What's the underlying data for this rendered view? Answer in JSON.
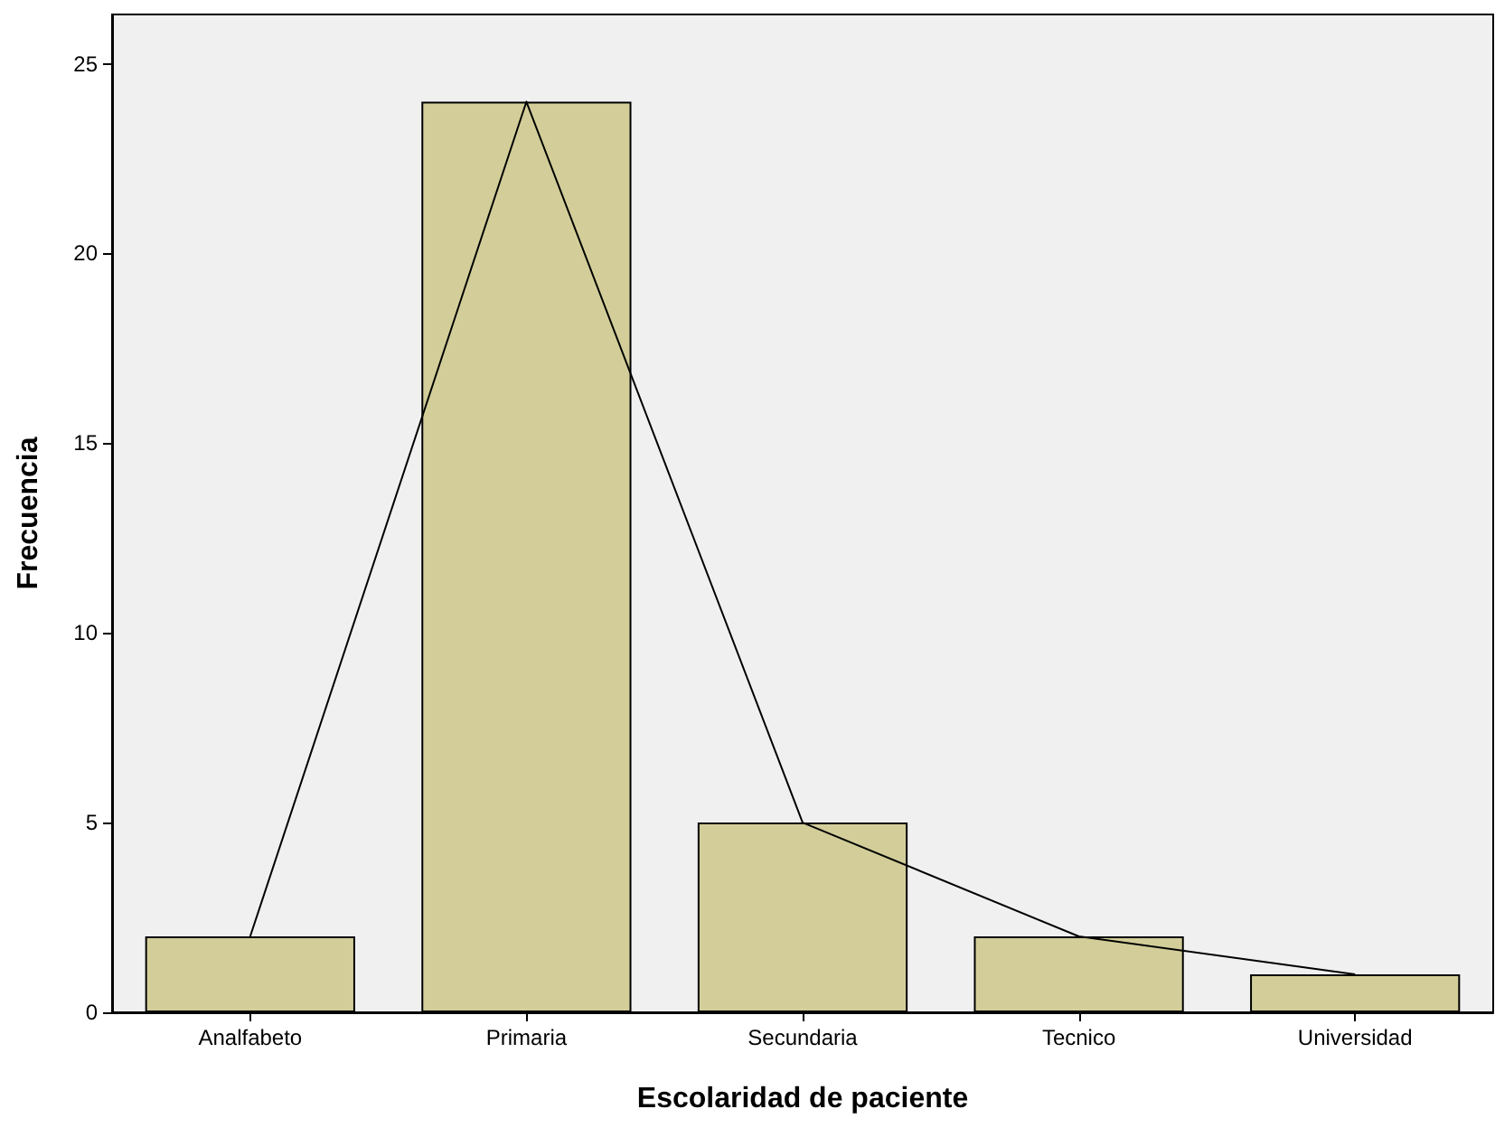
{
  "chart_data": {
    "type": "bar",
    "xlabel": "Escolaridad de paciente",
    "ylabel": "Frecuencia",
    "categories": [
      "Analfabeto",
      "Primaria",
      "Secundaria",
      "Tecnico",
      "Universidad"
    ],
    "series": [
      {
        "color": "#d3ce99",
        "values": [
          2,
          24,
          5,
          2,
          1
        ]
      },
      {
        "type": "line",
        "color": "#000000",
        "values": [
          2,
          24,
          5,
          2,
          1
        ]
      }
    ],
    "ylim": [
      0,
      26.3
    ],
    "yticks": [
      0,
      5,
      10,
      15,
      20,
      25
    ],
    "grid": false,
    "marker": "none",
    "line_style": "solid"
  }
}
